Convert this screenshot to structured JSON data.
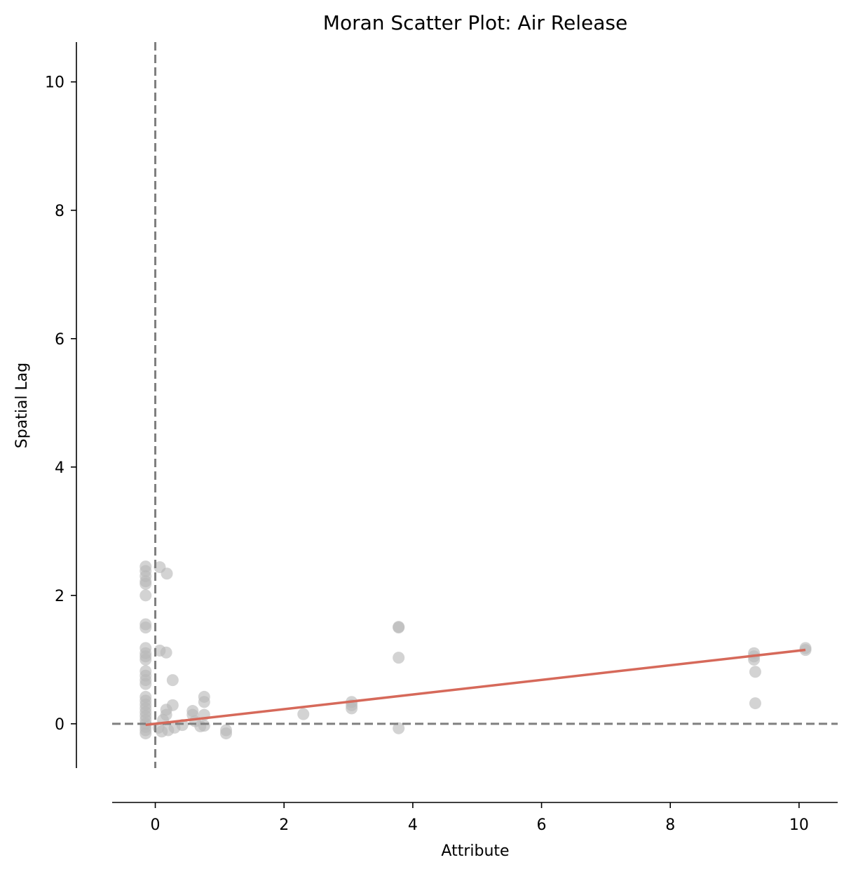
{
  "chart_data": {
    "type": "scatter",
    "title": "Moran Scatter Plot: Air Release",
    "xlabel": "Attribute",
    "ylabel": "Spatial Lag",
    "xlim": [
      -0.67,
      10.6
    ],
    "ylim": [
      -0.69,
      10.62
    ],
    "xticks": [
      {
        "value": 0,
        "label": "0"
      },
      {
        "value": 2,
        "label": "2"
      },
      {
        "value": 4,
        "label": "4"
      },
      {
        "value": 6,
        "label": "6"
      },
      {
        "value": 8,
        "label": "8"
      },
      {
        "value": 10,
        "label": "10"
      }
    ],
    "yticks": [
      {
        "value": 0,
        "label": "0"
      },
      {
        "value": 2,
        "label": "2"
      },
      {
        "value": 4,
        "label": "4"
      },
      {
        "value": 6,
        "label": "6"
      },
      {
        "value": 8,
        "label": "8"
      },
      {
        "value": 10,
        "label": "10"
      }
    ],
    "grid": false,
    "reference_lines": {
      "x": 0,
      "y": 0,
      "style": "dashed",
      "color": "#7f7f7f"
    },
    "fit_line": {
      "slope": 0.114,
      "intercept": 0.0,
      "x_range": [
        -0.15,
        10.1
      ],
      "color": "#d6695a"
    },
    "point_color": "#b8b8b8",
    "points": [
      {
        "x": -0.15,
        "y": 2.45
      },
      {
        "x": -0.15,
        "y": 2.38
      },
      {
        "x": -0.15,
        "y": 2.3
      },
      {
        "x": -0.15,
        "y": 2.22
      },
      {
        "x": -0.15,
        "y": 2.18
      },
      {
        "x": -0.15,
        "y": 2.0
      },
      {
        "x": -0.15,
        "y": 1.55
      },
      {
        "x": -0.15,
        "y": 1.5
      },
      {
        "x": -0.15,
        "y": 1.18
      },
      {
        "x": -0.15,
        "y": 1.1
      },
      {
        "x": -0.15,
        "y": 1.05
      },
      {
        "x": -0.15,
        "y": 1.0
      },
      {
        "x": -0.15,
        "y": 0.82
      },
      {
        "x": -0.15,
        "y": 0.75
      },
      {
        "x": -0.15,
        "y": 0.68
      },
      {
        "x": -0.15,
        "y": 0.62
      },
      {
        "x": -0.15,
        "y": 0.42
      },
      {
        "x": -0.15,
        "y": 0.36
      },
      {
        "x": -0.15,
        "y": 0.3
      },
      {
        "x": -0.15,
        "y": 0.24
      },
      {
        "x": -0.15,
        "y": 0.18
      },
      {
        "x": -0.15,
        "y": 0.12
      },
      {
        "x": -0.15,
        "y": 0.06
      },
      {
        "x": -0.15,
        "y": 0.0
      },
      {
        "x": -0.15,
        "y": -0.05
      },
      {
        "x": -0.15,
        "y": -0.1
      },
      {
        "x": -0.15,
        "y": -0.15
      },
      {
        "x": 0.07,
        "y": 2.44
      },
      {
        "x": 0.18,
        "y": 2.34
      },
      {
        "x": 0.07,
        "y": 1.14
      },
      {
        "x": 0.17,
        "y": 1.11
      },
      {
        "x": 0.27,
        "y": 0.68
      },
      {
        "x": 0.27,
        "y": 0.29
      },
      {
        "x": 0.17,
        "y": 0.22
      },
      {
        "x": 0.17,
        "y": 0.14
      },
      {
        "x": 0.12,
        "y": 0.06
      },
      {
        "x": 0.05,
        "y": -0.06
      },
      {
        "x": 0.1,
        "y": -0.12
      },
      {
        "x": 0.2,
        "y": -0.1
      },
      {
        "x": 0.3,
        "y": -0.06
      },
      {
        "x": 0.42,
        "y": -0.02
      },
      {
        "x": 0.58,
        "y": 0.2
      },
      {
        "x": 0.58,
        "y": 0.14
      },
      {
        "x": 0.62,
        "y": 0.04
      },
      {
        "x": 0.7,
        "y": -0.04
      },
      {
        "x": 0.76,
        "y": 0.42
      },
      {
        "x": 0.76,
        "y": 0.34
      },
      {
        "x": 0.76,
        "y": 0.14
      },
      {
        "x": 0.76,
        "y": -0.03
      },
      {
        "x": 1.1,
        "y": -0.1
      },
      {
        "x": 1.1,
        "y": -0.15
      },
      {
        "x": 2.3,
        "y": 0.15
      },
      {
        "x": 3.05,
        "y": 0.34
      },
      {
        "x": 3.05,
        "y": 0.29
      },
      {
        "x": 3.05,
        "y": 0.24
      },
      {
        "x": 3.78,
        "y": 1.51
      },
      {
        "x": 3.78,
        "y": 1.5
      },
      {
        "x": 3.78,
        "y": 1.03
      },
      {
        "x": 3.78,
        "y": -0.07
      },
      {
        "x": 9.3,
        "y": 1.1
      },
      {
        "x": 9.3,
        "y": 1.05
      },
      {
        "x": 9.3,
        "y": 1.0
      },
      {
        "x": 9.32,
        "y": 0.81
      },
      {
        "x": 9.32,
        "y": 0.32
      },
      {
        "x": 10.1,
        "y": 1.18
      },
      {
        "x": 10.1,
        "y": 1.15
      }
    ]
  }
}
